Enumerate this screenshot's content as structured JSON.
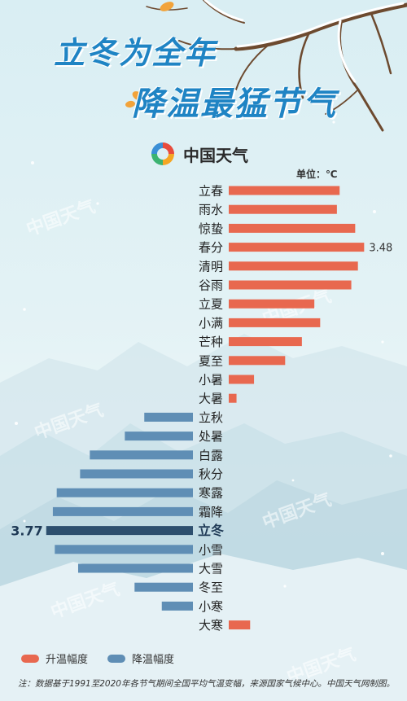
{
  "title_line1": "立冬为全年",
  "title_line2": "降温最猛节气",
  "brand": "中国天气",
  "watermark_text": "中国天气",
  "unit_label": "单位：℃",
  "colors": {
    "rise": "#e8684f",
    "fall": "#5f8eb5",
    "highlight": "#2d4f6e",
    "title": "#1f84c4"
  },
  "legend": {
    "rise": "升温幅度",
    "fall": "降温幅度"
  },
  "note": "注：数据基于1991至2020年各节气期间全国平均气温变幅，来源国家气候中心。中国天气网制图。",
  "chart_data": {
    "type": "bar",
    "orientation": "horizontal",
    "categories": [
      "立春",
      "雨水",
      "惊蛰",
      "春分",
      "清明",
      "谷雨",
      "立夏",
      "小满",
      "芒种",
      "夏至",
      "小暑",
      "大暑",
      "立秋",
      "处暑",
      "白露",
      "秋分",
      "寒露",
      "霜降",
      "立冬",
      "小雪",
      "大雪",
      "冬至",
      "小寒",
      "大寒"
    ],
    "series": [
      {
        "name": "升温幅度",
        "color": "#e8684f",
        "values": [
          2.85,
          2.78,
          3.25,
          3.48,
          3.32,
          3.15,
          2.2,
          2.35,
          1.88,
          1.45,
          0.65,
          0.2,
          0,
          0,
          0,
          0,
          0,
          0,
          0,
          0,
          0,
          0,
          0,
          0.55
        ]
      },
      {
        "name": "降温幅度",
        "color": "#5f8eb5",
        "values": [
          0,
          0,
          0,
          0,
          0,
          0,
          0,
          0,
          0,
          0,
          0,
          0,
          1.25,
          1.75,
          2.65,
          2.9,
          3.5,
          3.6,
          3.77,
          3.55,
          2.95,
          1.5,
          0.8,
          0
        ]
      }
    ],
    "data_labels": [
      {
        "category": "春分",
        "value": "3.48"
      },
      {
        "category": "立冬",
        "value": "3.77"
      }
    ],
    "highlight": "立冬",
    "unit": "℃",
    "legend_position": "bottom-left",
    "grid": false
  }
}
